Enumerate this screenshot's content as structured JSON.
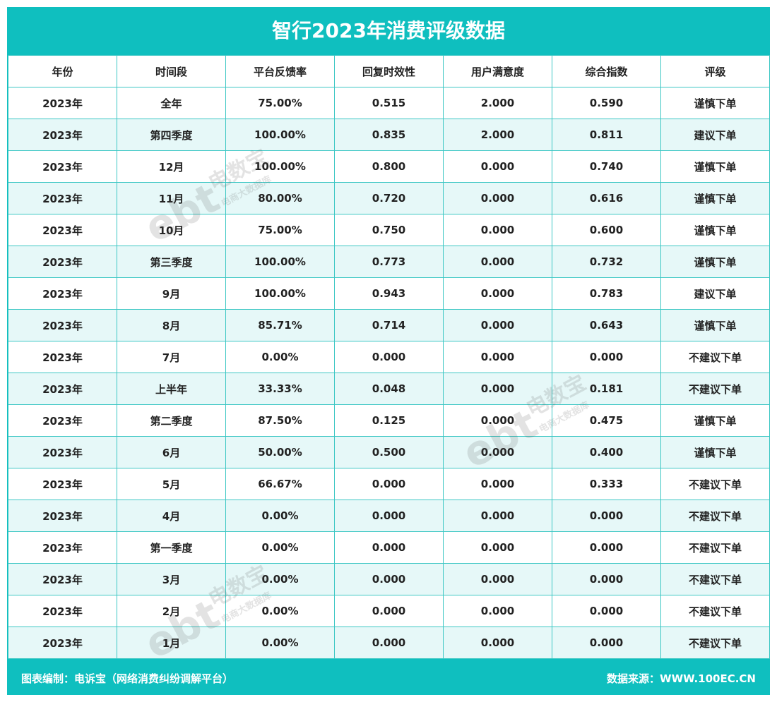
{
  "title": "智行2023年消费评级数据",
  "table": {
    "headers": [
      "年份",
      "时间段",
      "平台反馈率",
      "回复时效性",
      "用户满意度",
      "综合指数",
      "评级"
    ],
    "rows": [
      [
        "2023年",
        "全年",
        "75.00%",
        "0.515",
        "2.000",
        "0.590",
        "谨慎下单"
      ],
      [
        "2023年",
        "第四季度",
        "100.00%",
        "0.835",
        "2.000",
        "0.811",
        "建议下单"
      ],
      [
        "2023年",
        "12月",
        "100.00%",
        "0.800",
        "0.000",
        "0.740",
        "谨慎下单"
      ],
      [
        "2023年",
        "11月",
        "80.00%",
        "0.720",
        "0.000",
        "0.616",
        "谨慎下单"
      ],
      [
        "2023年",
        "10月",
        "75.00%",
        "0.750",
        "0.000",
        "0.600",
        "谨慎下单"
      ],
      [
        "2023年",
        "第三季度",
        "100.00%",
        "0.773",
        "0.000",
        "0.732",
        "谨慎下单"
      ],
      [
        "2023年",
        "9月",
        "100.00%",
        "0.943",
        "0.000",
        "0.783",
        "建议下单"
      ],
      [
        "2023年",
        "8月",
        "85.71%",
        "0.714",
        "0.000",
        "0.643",
        "谨慎下单"
      ],
      [
        "2023年",
        "7月",
        "0.00%",
        "0.000",
        "0.000",
        "0.000",
        "不建议下单"
      ],
      [
        "2023年",
        "上半年",
        "33.33%",
        "0.048",
        "0.000",
        "0.181",
        "不建议下单"
      ],
      [
        "2023年",
        "第二季度",
        "87.50%",
        "0.125",
        "0.000",
        "0.475",
        "谨慎下单"
      ],
      [
        "2023年",
        "6月",
        "50.00%",
        "0.500",
        "0.000",
        "0.400",
        "谨慎下单"
      ],
      [
        "2023年",
        "5月",
        "66.67%",
        "0.000",
        "0.000",
        "0.333",
        "不建议下单"
      ],
      [
        "2023年",
        "4月",
        "0.00%",
        "0.000",
        "0.000",
        "0.000",
        "不建议下单"
      ],
      [
        "2023年",
        "第一季度",
        "0.00%",
        "0.000",
        "0.000",
        "0.000",
        "不建议下单"
      ],
      [
        "2023年",
        "3月",
        "0.00%",
        "0.000",
        "0.000",
        "0.000",
        "不建议下单"
      ],
      [
        "2023年",
        "2月",
        "0.00%",
        "0.000",
        "0.000",
        "0.000",
        "不建议下单"
      ],
      [
        "2023年",
        "1月",
        "0.00%",
        "0.000",
        "0.000",
        "0.000",
        "不建议下单"
      ]
    ]
  },
  "footer": {
    "left": "图表编制：电诉宝（网络消费纠纷调解平台）",
    "right": "数据来源：WWW.100EC.CN"
  },
  "watermark": {
    "logo_text": "ebt",
    "brand": "电数宝",
    "tagline": "电商大数据库"
  },
  "colors": {
    "header_bg": "#0fbfbf",
    "grid_line": "#3cc7c4",
    "alt_row": "#e6f8f8",
    "text": "#222222",
    "title_text": "#ffffff"
  }
}
